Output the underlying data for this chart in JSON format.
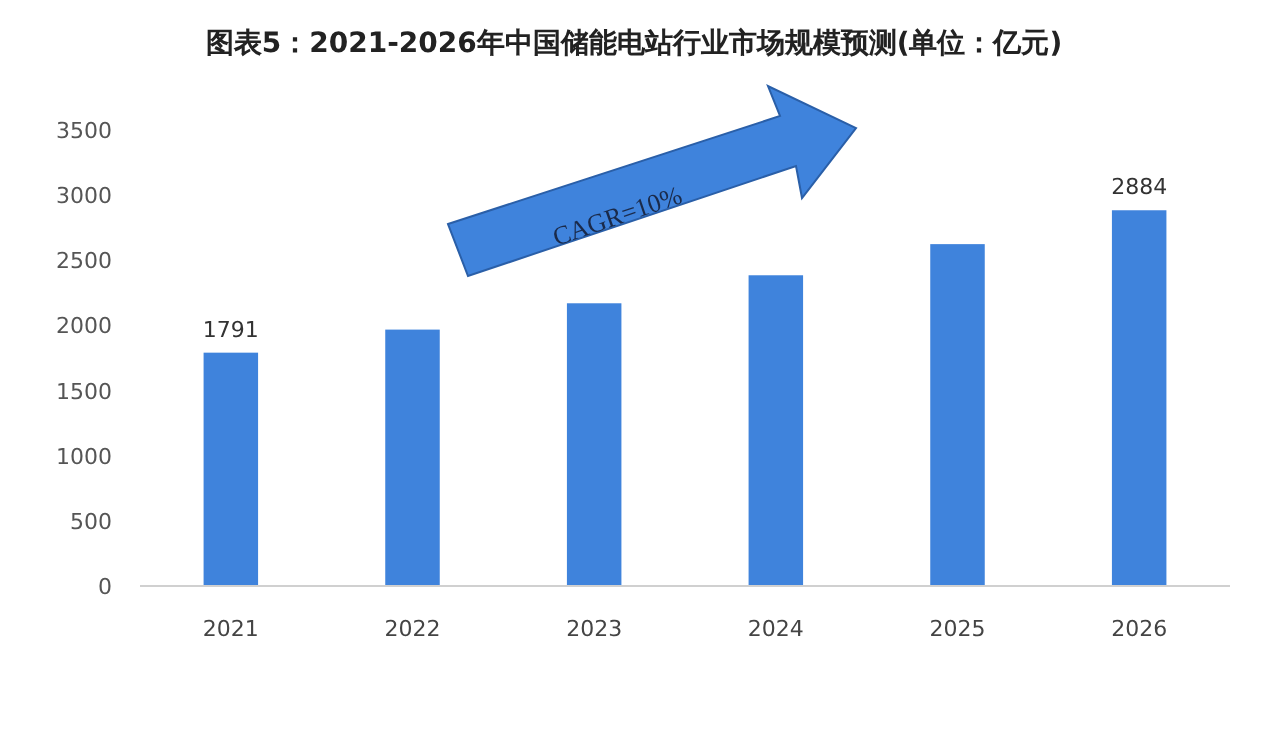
{
  "chart_data": {
    "type": "bar",
    "title": "图表5：2021-2026年中国储能电站行业市场规模预测(单位：亿元)",
    "categories": [
      "2021",
      "2022",
      "2023",
      "2024",
      "2025",
      "2026"
    ],
    "values": [
      1791,
      1968,
      2170,
      2385,
      2624,
      2884
    ],
    "color": "#3f83dc",
    "value_labels": [
      "1791",
      null,
      null,
      null,
      null,
      "2884"
    ],
    "ylim": [
      0,
      3500
    ],
    "yticks": [
      0,
      500,
      1000,
      1500,
      2000,
      2500,
      3000,
      3500
    ],
    "annotations": [
      "CAGR=10%"
    ]
  }
}
